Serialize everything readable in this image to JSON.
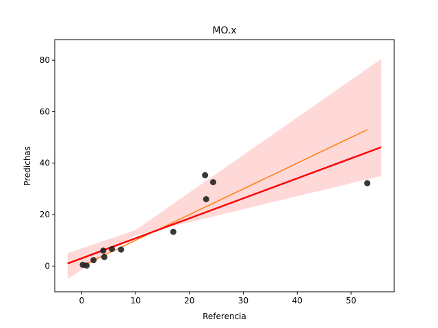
{
  "chart_data": {
    "type": "scatter",
    "title": "MO.x",
    "xlabel": "Referencia",
    "ylabel": "Predichas",
    "xlim": [
      -5,
      58
    ],
    "ylim": [
      -10,
      88
    ],
    "xticks": [
      0,
      10,
      20,
      30,
      40,
      50
    ],
    "yticks": [
      0,
      20,
      40,
      60,
      80
    ],
    "grid": false,
    "points": {
      "color": "#222222",
      "x": [
        0.2,
        0.9,
        2.2,
        4.0,
        4.2,
        5.6,
        7.3,
        17.0,
        22.9,
        23.1,
        24.4,
        53.0
      ],
      "y": [
        0.5,
        0.2,
        2.3,
        6.0,
        3.5,
        6.6,
        6.4,
        13.3,
        35.3,
        26.0,
        32.6,
        32.2
      ]
    },
    "regression_line": {
      "color": "#ff0000",
      "x": [
        -2.6,
        55.6
      ],
      "y": [
        1.0,
        46.2
      ]
    },
    "confidence_band": {
      "color": "#ffd6d6",
      "x": [
        -2.6,
        10.0,
        55.6
      ],
      "upper": [
        5.0,
        14.0,
        80.5
      ],
      "lower": [
        -5.0,
        12.0,
        35.0
      ]
    },
    "identity_line": {
      "color": "#ff7f0e",
      "x": [
        0,
        53
      ],
      "y": [
        0,
        53
      ]
    }
  }
}
